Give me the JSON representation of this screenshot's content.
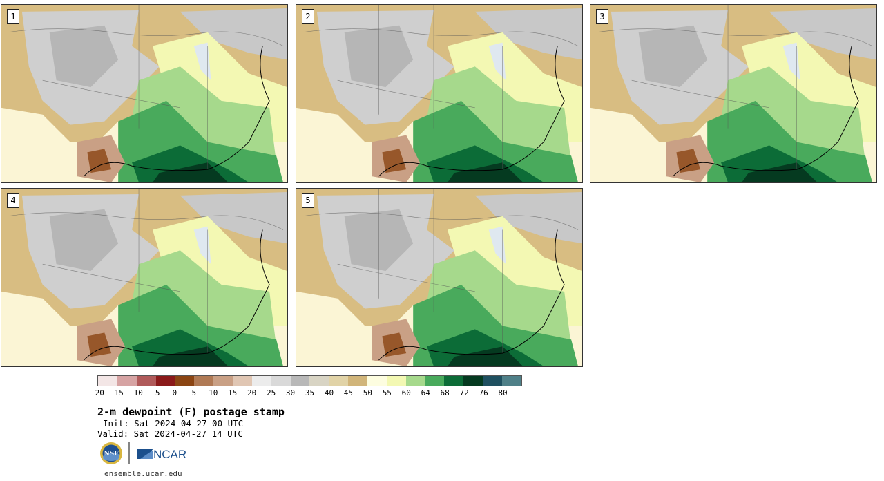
{
  "panels": [
    {
      "label": "1"
    },
    {
      "label": "2"
    },
    {
      "label": "3"
    },
    {
      "label": "4"
    },
    {
      "label": "5"
    }
  ],
  "colorbar": {
    "colors": [
      "#f3e6e6",
      "#d6a3a3",
      "#b05a5a",
      "#8b1a1a",
      "#8b4513",
      "#b07a55",
      "#c9a085",
      "#e0c6b3",
      "#ececec",
      "#d9d9d9",
      "#b8b8b8",
      "#d8d4c4",
      "#e1d3a7",
      "#d1b57a",
      "#fdfde0",
      "#f3f8b3",
      "#a6d98c",
      "#49aa5c",
      "#0c6c37",
      "#053a20",
      "#1f5060",
      "#4f8088"
    ],
    "tick_labels": [
      "−20",
      "−15",
      "−10",
      "−5",
      "0",
      "5",
      "10",
      "15",
      "20",
      "25",
      "30",
      "35",
      "40",
      "45",
      "50",
      "55",
      "60",
      "64",
      "68",
      "72",
      "76",
      "80"
    ]
  },
  "title": "2-m dewpoint (F) postage stamp",
  "init": "Init: Sat 2024-04-27 00 UTC",
  "valid": "Valid: Sat 2024-04-27 14 UTC",
  "logos": {
    "nsf": "NSF",
    "ncar": "NCAR"
  },
  "website": "ensemble.ucar.edu"
}
